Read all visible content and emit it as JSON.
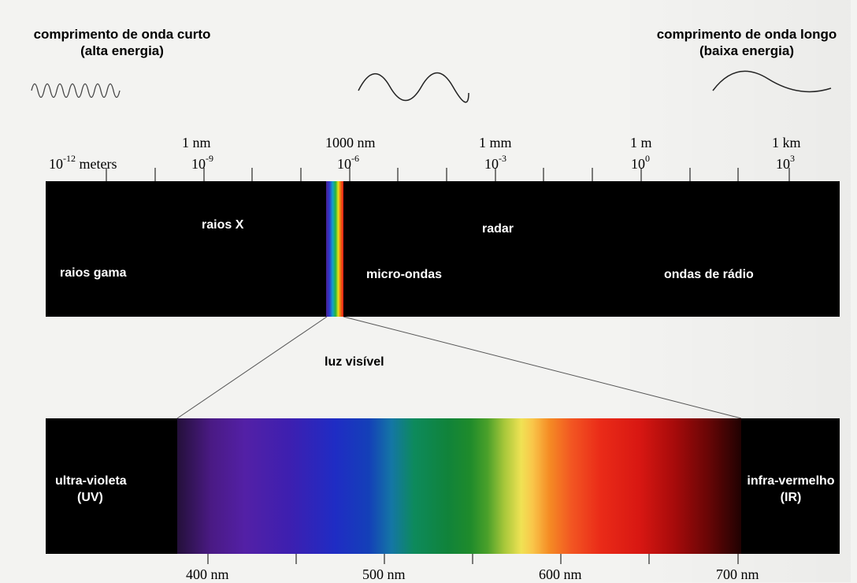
{
  "header": {
    "left_line1": "comprimento de onda curto",
    "left_line2": "(alta energia)",
    "right_line1": "comprimento de onda longo",
    "right_line2": "(baixa energia)"
  },
  "scale": {
    "top": [
      "1 nm",
      "1000 nm",
      "1 mm",
      "1 m",
      "1 km"
    ],
    "exp_base": "10",
    "exponents": [
      "-12",
      "-9",
      "-6",
      "-3",
      "0",
      "3"
    ],
    "first_unit": "meters"
  },
  "bands": {
    "gamma": "raios gama",
    "xray": "raios X",
    "radar": "radar",
    "microwave": "micro-ondas",
    "radio": "ondas de rádio"
  },
  "visible": {
    "title": "luz visível",
    "uv_line1": "ultra-violeta",
    "uv_line2": "(UV)",
    "ir_line1": "infra-vermelho",
    "ir_line2": "(IR)",
    "nm_labels": [
      "400 nm",
      "500 nm",
      "600 nm",
      "700 nm"
    ]
  }
}
